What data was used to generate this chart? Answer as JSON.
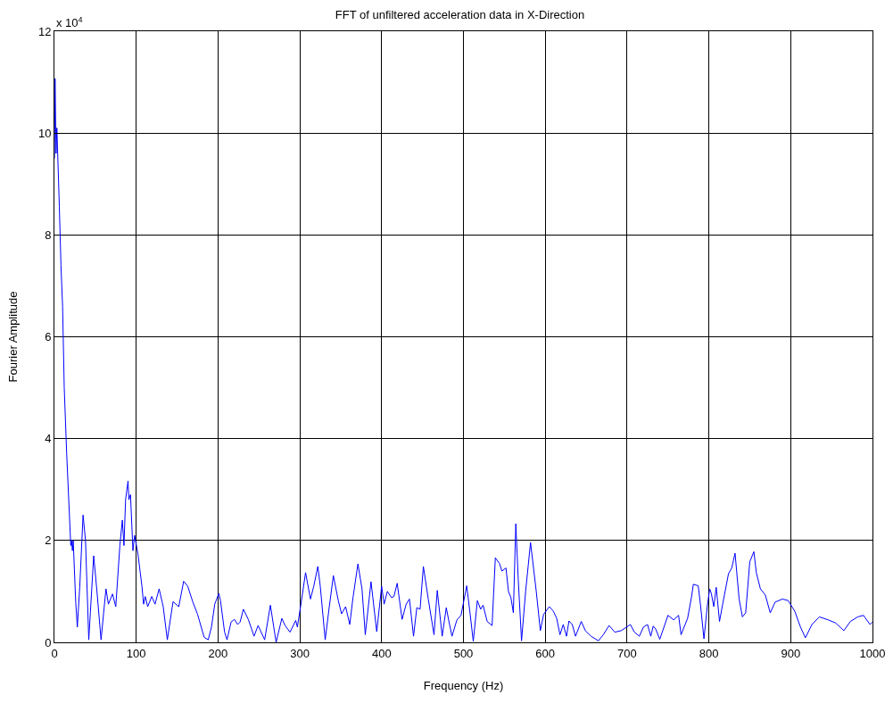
{
  "chart_data": {
    "type": "line",
    "title": "FFT of unfiltered acceleration data in X-Direction",
    "xlabel": "Frequency (Hz)",
    "ylabel": "Fourier Amplitude",
    "annotations": [
      "x 10$^{4}$"
    ],
    "xlim": [
      0,
      1000
    ],
    "xticks": [
      0,
      100,
      200,
      300,
      400,
      500,
      600,
      700,
      800,
      900,
      1000
    ],
    "ylim": [
      0,
      12
    ],
    "yticks": [
      0,
      2,
      4,
      6,
      8,
      10,
      12
    ],
    "grid": true,
    "marker": "none",
    "line_style": "solid",
    "series": [
      {
        "color": "#0000ff",
        "x": [
          0,
          0.8,
          2,
          3,
          4,
          6,
          8,
          10,
          12,
          15,
          20,
          21,
          22,
          23,
          26,
          28,
          31,
          35,
          38,
          42,
          48,
          52,
          57,
          63,
          66,
          71,
          75,
          80,
          83,
          85,
          87,
          90,
          91,
          93,
          96,
          98,
          102,
          107,
          109,
          111,
          114,
          119,
          123,
          128,
          133,
          138,
          145,
          152,
          158,
          163,
          169,
          175,
          183,
          188,
          192,
          196,
          201,
          203,
          208,
          211,
          216,
          220,
          224,
          227,
          231,
          237,
          244,
          249,
          257,
          264,
          271,
          278,
          282,
          288,
          295,
          297,
          302,
          307,
          313,
          317,
          322,
          325,
          331,
          336,
          341,
          347,
          351,
          356,
          361,
          365,
          371,
          376,
          380,
          387,
          394,
          400,
          403,
          407,
          412,
          415,
          419,
          425,
          430,
          434,
          439,
          443,
          447,
          451,
          457,
          464,
          468,
          474,
          479,
          483,
          486,
          492,
          497,
          504,
          508,
          512,
          517,
          521,
          524,
          529,
          535,
          539,
          544,
          547,
          552,
          555,
          558,
          561,
          564,
          567,
          571,
          576,
          582,
          589,
          594,
          598,
          605,
          610,
          614,
          618,
          622,
          626,
          629,
          633,
          637,
          644,
          649,
          656,
          665,
          671,
          678,
          685,
          693,
          704,
          709,
          715,
          720,
          725,
          729,
          732,
          735,
          740,
          750,
          757,
          763,
          766,
          774,
          779,
          781,
          787,
          790,
          794,
          798,
          801,
          803,
          806,
          809,
          813,
          817,
          824,
          828,
          832,
          837,
          841,
          845,
          850,
          855,
          858,
          863,
          869,
          875,
          881,
          890,
          897,
          905,
          912,
          918,
          926,
          935,
          946,
          955,
          965,
          973,
          982,
          989,
          997,
          1000
        ],
        "values": [
          9.5,
          11.07,
          9.6,
          10.1,
          9.6,
          8.56,
          7.4,
          6.6,
          5.0,
          3.7,
          1.9,
          2.0,
          1.8,
          2.0,
          0.8,
          0.3,
          1.1,
          2.5,
          2.0,
          0.05,
          1.7,
          1.0,
          0.05,
          1.05,
          0.75,
          0.95,
          0.7,
          1.9,
          2.4,
          1.9,
          2.8,
          3.17,
          2.8,
          2.9,
          1.8,
          2.1,
          1.75,
          1.1,
          0.75,
          0.9,
          0.7,
          0.9,
          0.75,
          1.05,
          0.7,
          0.05,
          0.8,
          0.7,
          1.2,
          1.1,
          0.8,
          0.55,
          0.1,
          0.05,
          0.3,
          0.75,
          0.96,
          0.82,
          0.2,
          0.05,
          0.4,
          0.45,
          0.35,
          0.4,
          0.65,
          0.45,
          0.12,
          0.33,
          0.05,
          0.73,
          0,
          0.47,
          0.33,
          0.2,
          0.43,
          0.3,
          0.82,
          1.37,
          0.85,
          1.1,
          1.49,
          1.1,
          0.05,
          0.7,
          1.31,
          0.82,
          0.56,
          0.7,
          0.35,
          0.88,
          1.54,
          1.05,
          0.15,
          1.19,
          0.21,
          1.1,
          0.75,
          1.0,
          0.88,
          0.9,
          1.16,
          0.45,
          0.75,
          0.85,
          0.12,
          0.68,
          0.65,
          1.49,
          0.85,
          0.15,
          1.02,
          0.12,
          0.68,
          0.35,
          0.12,
          0.44,
          0.53,
          1.11,
          0.58,
          0.02,
          0.82,
          0.65,
          0.73,
          0.41,
          0.33,
          1.66,
          1.55,
          1.4,
          1.46,
          1.0,
          0.88,
          0.58,
          2.33,
          1.23,
          0.03,
          1.0,
          1.96,
          1.0,
          0.23,
          0.55,
          0.7,
          0.61,
          0.47,
          0.15,
          0.35,
          0.12,
          0.42,
          0.35,
          0.12,
          0.41,
          0.23,
          0.12,
          0.03,
          0.15,
          0.33,
          0.2,
          0.23,
          0.35,
          0.2,
          0.12,
          0.3,
          0.35,
          0.12,
          0.32,
          0.26,
          0.06,
          0.53,
          0.44,
          0.53,
          0.15,
          0.47,
          0.91,
          1.14,
          1.11,
          0.7,
          0.07,
          0.7,
          1.05,
          0.96,
          0.7,
          1.08,
          0.41,
          0.76,
          1.35,
          1.46,
          1.75,
          0.85,
          0.5,
          0.58,
          1.58,
          1.78,
          1.37,
          1.05,
          0.93,
          0.58,
          0.79,
          0.85,
          0.82,
          0.61,
          0.3,
          0.09,
          0.35,
          0.5,
          0.44,
          0.38,
          0.23,
          0.41,
          0.5,
          0.53,
          0.35,
          0.4
        ]
      }
    ]
  }
}
